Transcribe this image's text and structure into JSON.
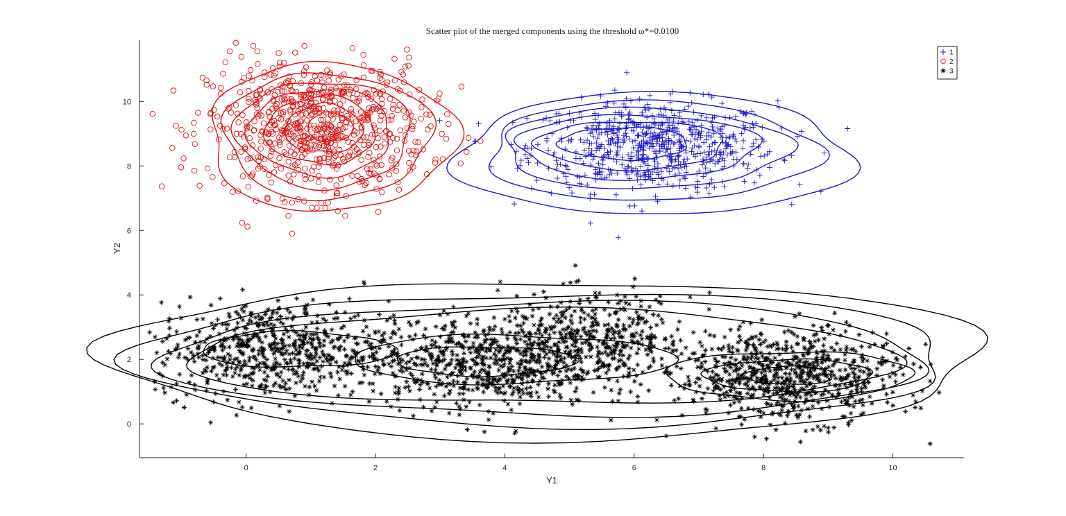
{
  "chart_data": {
    "type": "scatter",
    "title": "Scatter plot of the merged components using the threshold ω*=0.0100",
    "xlabel": "Y1",
    "ylabel": "Y2",
    "xlim": [
      -1.65,
      11.1
    ],
    "ylim": [
      -1.05,
      11.9
    ],
    "xticks": [
      0,
      2,
      4,
      6,
      8,
      10
    ],
    "yticks": [
      0,
      2,
      4,
      6,
      8,
      10
    ],
    "grid": false,
    "legend_position": "top-right",
    "series": [
      {
        "name": "1",
        "marker": "+",
        "color": "#1a1acc",
        "center": [
          6.3,
          8.6
        ],
        "spread": [
          0.95,
          0.7
        ],
        "count": 700,
        "contours": [
          {
            "cx": 6.3,
            "cy": 8.35,
            "rx": 3.05,
            "ry": 1.9
          },
          {
            "cx": 6.25,
            "cy": 8.45,
            "rx": 2.55,
            "ry": 1.55
          },
          {
            "cx": 6.15,
            "cy": 8.55,
            "rx": 2.2,
            "ry": 1.25
          },
          {
            "cx": 6.05,
            "cy": 8.6,
            "rx": 1.85,
            "ry": 1.0
          },
          {
            "cx": 5.95,
            "cy": 8.65,
            "rx": 1.45,
            "ry": 0.75
          },
          {
            "cx": 5.85,
            "cy": 8.7,
            "rx": 1.0,
            "ry": 0.5
          }
        ]
      },
      {
        "name": "2",
        "marker": "o",
        "color": "#e01010",
        "center": [
          1.1,
          9.2
        ],
        "spread": [
          0.85,
          1.05
        ],
        "count": 700,
        "contours": [
          {
            "cx": 1.3,
            "cy": 8.9,
            "rx": 1.9,
            "ry": 2.3
          },
          {
            "cx": 1.25,
            "cy": 8.95,
            "rx": 1.6,
            "ry": 1.95
          },
          {
            "cx": 1.2,
            "cy": 9.0,
            "rx": 1.35,
            "ry": 1.65
          },
          {
            "cx": 1.15,
            "cy": 9.05,
            "rx": 1.1,
            "ry": 1.35
          },
          {
            "cx": 1.15,
            "cy": 9.1,
            "rx": 0.85,
            "ry": 1.05
          },
          {
            "cx": 1.2,
            "cy": 9.15,
            "rx": 0.6,
            "ry": 0.75
          },
          {
            "cx": 1.3,
            "cy": 9.2,
            "rx": 0.35,
            "ry": 0.45
          }
        ]
      },
      {
        "name": "3",
        "marker": "*",
        "color": "#000000",
        "clusters": [
          {
            "center": [
              0.4,
              2.3
            ],
            "spread": [
              0.9,
              0.75
            ],
            "count": 650
          },
          {
            "center": [
              3.6,
              1.9
            ],
            "spread": [
              0.9,
              0.7
            ],
            "count": 650
          },
          {
            "center": [
              5.4,
              2.6
            ],
            "spread": [
              0.75,
              0.7
            ],
            "count": 450
          },
          {
            "center": [
              8.4,
              1.5
            ],
            "spread": [
              0.85,
              0.7
            ],
            "count": 750
          }
        ],
        "contours": [
          {
            "cx": 4.7,
            "cy": 2.0,
            "rx": 6.75,
            "ry": 2.45
          },
          {
            "cx": 4.7,
            "cy": 2.0,
            "rx": 6.3,
            "ry": 2.05
          },
          {
            "cx": 4.7,
            "cy": 2.0,
            "rx": 5.9,
            "ry": 1.75
          },
          {
            "cx": 4.6,
            "cy": 2.05,
            "rx": 5.5,
            "ry": 1.45
          },
          {
            "cx": 0.8,
            "cy": 2.3,
            "rx": 1.5,
            "ry": 0.55
          },
          {
            "cx": 4.1,
            "cy": 2.0,
            "rx": 2.5,
            "ry": 0.75
          },
          {
            "cx": 3.7,
            "cy": 1.95,
            "rx": 1.4,
            "ry": 0.45
          },
          {
            "cx": 8.4,
            "cy": 1.5,
            "rx": 1.9,
            "ry": 0.75
          },
          {
            "cx": 8.4,
            "cy": 1.5,
            "rx": 1.3,
            "ry": 0.5
          },
          {
            "cx": 8.4,
            "cy": 1.5,
            "rx": 0.7,
            "ry": 0.28
          }
        ]
      }
    ]
  }
}
